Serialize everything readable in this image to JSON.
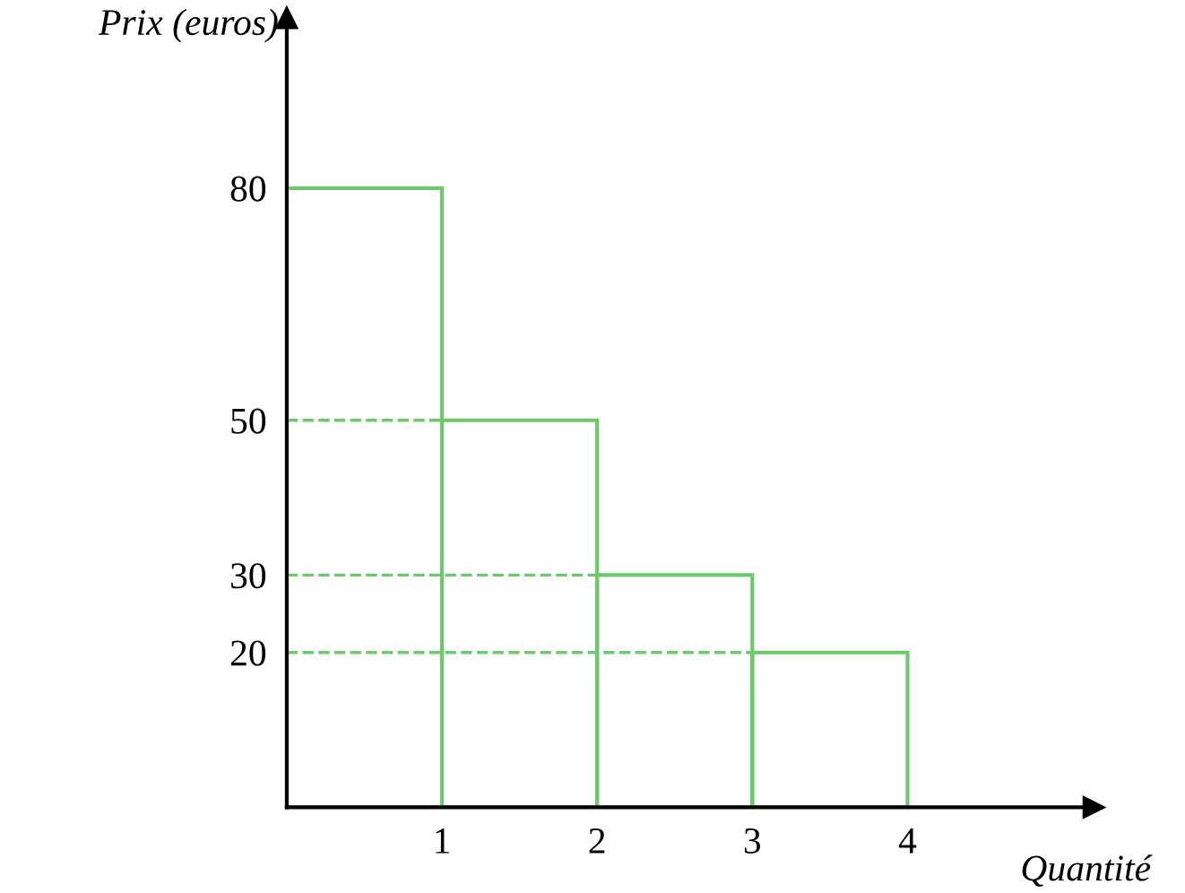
{
  "chart_data": {
    "type": "histogram",
    "xlabel": "Quantité",
    "ylabel": "Prix (euros)",
    "bins": [
      0,
      1,
      2,
      3,
      4
    ],
    "values": [
      80,
      50,
      30,
      20
    ],
    "color": "#6cc96c",
    "xlim": [
      0,
      5.2
    ],
    "ylim": [
      0,
      102
    ],
    "xticks": [
      1,
      2,
      3,
      4
    ],
    "yticks": [
      20,
      30,
      50,
      80
    ],
    "ref_lines": [
      {
        "axis": "y",
        "value": 50,
        "line_style": "dashed",
        "color": "#6cc96c"
      },
      {
        "axis": "y",
        "value": 30,
        "line_style": "dashed",
        "color": "#6cc96c"
      },
      {
        "axis": "y",
        "value": 20,
        "line_style": "dashed",
        "color": "#6cc96c"
      }
    ],
    "grid": false
  }
}
